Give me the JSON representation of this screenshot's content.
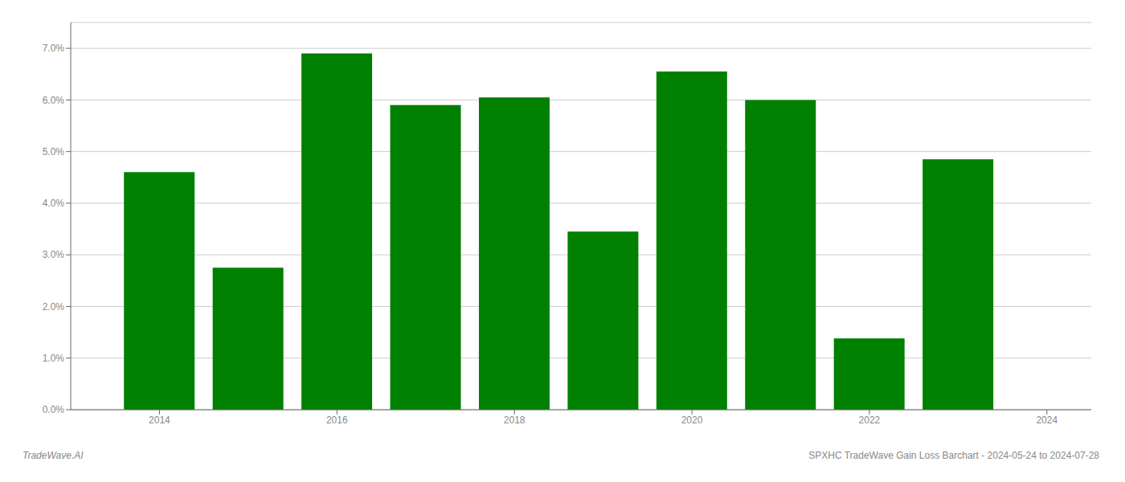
{
  "chart_data": {
    "type": "bar",
    "x": [
      2014,
      2015,
      2016,
      2017,
      2018,
      2019,
      2020,
      2021,
      2022,
      2023
    ],
    "values": [
      0.046,
      0.0275,
      0.069,
      0.059,
      0.0605,
      0.0345,
      0.0655,
      0.06,
      0.0138,
      0.0485
    ],
    "color": "#008000",
    "xlim": [
      2013.0,
      2024.5
    ],
    "xticks": [
      2014,
      2016,
      2018,
      2020,
      2022,
      2024
    ],
    "ylim": [
      0,
      0.075
    ],
    "yticks": [
      {
        "value": 0.0,
        "label": "0.0%"
      },
      {
        "value": 0.01,
        "label": "1.0%"
      },
      {
        "value": 0.02,
        "label": "2.0%"
      },
      {
        "value": 0.03,
        "label": "3.0%"
      },
      {
        "value": 0.04,
        "label": "4.0%"
      },
      {
        "value": 0.05,
        "label": "5.0%"
      },
      {
        "value": 0.06,
        "label": "6.0%"
      },
      {
        "value": 0.07,
        "label": "7.0%"
      }
    ],
    "grid": "y",
    "annotations": [
      "TradeWave.AI",
      "SPXHC TradeWave Gain Loss Barchart - 2024-05-24 to 2024-07-28"
    ]
  }
}
